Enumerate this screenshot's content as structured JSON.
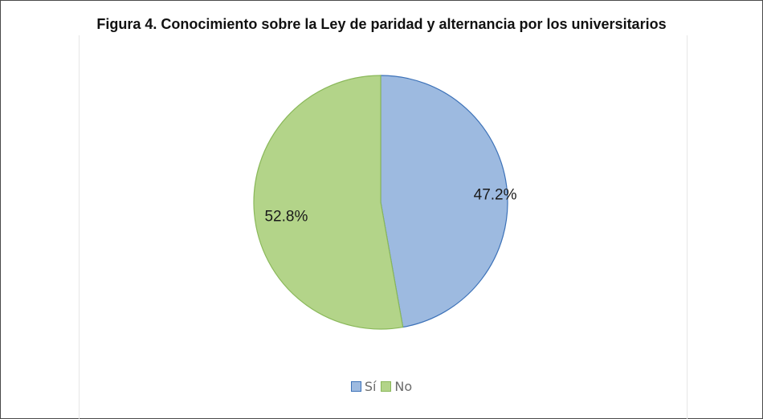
{
  "title": "Figura 4. Conocimiento sobre la Ley de paridad y alternancia por los universitarios",
  "chart_data": {
    "type": "pie",
    "title": "Figura 4. Conocimiento sobre la Ley de paridad y alternancia por los universitarios",
    "categories": [
      "Sí",
      "No"
    ],
    "values": [
      47.2,
      52.8
    ],
    "labels": [
      "47.2%",
      "52.8%"
    ],
    "colors": [
      "#9dbae0",
      "#b3d489"
    ],
    "stroke_colors": [
      "#3d72b8",
      "#8ab85a"
    ],
    "start_angle_deg": 0,
    "direction": "clockwise",
    "legend_position": "bottom"
  }
}
